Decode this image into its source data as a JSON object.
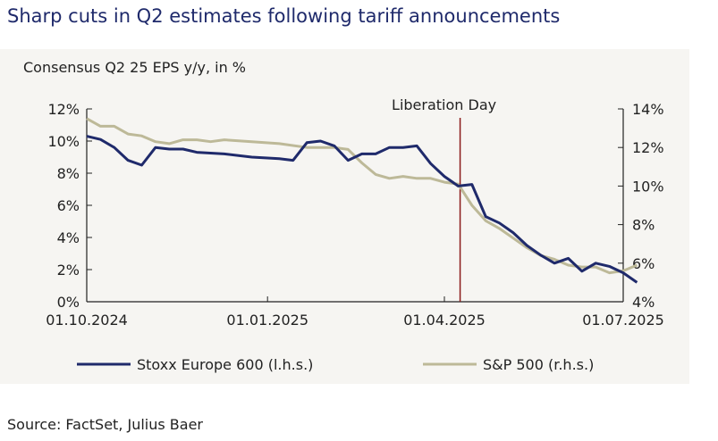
{
  "title": "Sharp cuts in Q2 estimates following tariff announcements",
  "source": "Source: FactSet, Julius Baer",
  "colors": {
    "stoxx": "#1f2a6b",
    "sp500": "#bdb998",
    "event": "#8b1a1a",
    "title": "#1f2a6b"
  },
  "chart_data": {
    "type": "line",
    "subtitle": "Consensus Q2 25 EPS y/y, in %",
    "x_ticks": [
      "01.10.2024",
      "01.01.2025",
      "01.04.2025",
      "01.07.2025"
    ],
    "xlim": [
      "2024-10-01",
      "2025-07-01"
    ],
    "ylim_left": [
      0,
      12
    ],
    "yticks_left": [
      "0%",
      "2%",
      "4%",
      "6%",
      "8%",
      "10%",
      "12%"
    ],
    "ylim_right": [
      4,
      14
    ],
    "yticks_right": [
      "4%",
      "6%",
      "8%",
      "10%",
      "12%",
      "14%"
    ],
    "annotation": {
      "label": "Liberation Day",
      "date": "2025-04-09"
    },
    "legend": {
      "placement": "bottom"
    },
    "series": [
      {
        "name": "Stoxx Europe 600 (l.h.s.)",
        "axis": "left",
        "color": "#1f2a6b",
        "points": [
          [
            "2024-10-01",
            10.3
          ],
          [
            "2024-10-08",
            10.1
          ],
          [
            "2024-10-15",
            9.6
          ],
          [
            "2024-10-22",
            8.8
          ],
          [
            "2024-10-29",
            8.5
          ],
          [
            "2024-11-05",
            9.6
          ],
          [
            "2024-11-12",
            9.5
          ],
          [
            "2024-11-19",
            9.5
          ],
          [
            "2024-11-26",
            9.3
          ],
          [
            "2024-12-10",
            9.2
          ],
          [
            "2024-12-24",
            9.0
          ],
          [
            "2025-01-07",
            8.9
          ],
          [
            "2025-01-14",
            8.8
          ],
          [
            "2025-01-21",
            9.9
          ],
          [
            "2025-01-28",
            10.0
          ],
          [
            "2025-02-04",
            9.7
          ],
          [
            "2025-02-11",
            8.8
          ],
          [
            "2025-02-18",
            9.2
          ],
          [
            "2025-02-25",
            9.2
          ],
          [
            "2025-03-04",
            9.6
          ],
          [
            "2025-03-11",
            9.6
          ],
          [
            "2025-03-18",
            9.7
          ],
          [
            "2025-03-25",
            8.6
          ],
          [
            "2025-04-01",
            7.8
          ],
          [
            "2025-04-08",
            7.2
          ],
          [
            "2025-04-15",
            7.3
          ],
          [
            "2025-04-22",
            5.3
          ],
          [
            "2025-04-29",
            4.9
          ],
          [
            "2025-05-06",
            4.3
          ],
          [
            "2025-05-13",
            3.5
          ],
          [
            "2025-05-20",
            2.9
          ],
          [
            "2025-05-27",
            2.4
          ],
          [
            "2025-06-03",
            2.7
          ],
          [
            "2025-06-10",
            1.9
          ],
          [
            "2025-06-17",
            2.4
          ],
          [
            "2025-06-24",
            2.2
          ],
          [
            "2025-07-01",
            1.8
          ],
          [
            "2025-07-08",
            1.2
          ]
        ]
      },
      {
        "name": "S&P 500 (r.h.s.)",
        "axis": "right",
        "color": "#bdb998",
        "points": [
          [
            "2024-10-01",
            13.5
          ],
          [
            "2024-10-08",
            13.1
          ],
          [
            "2024-10-15",
            13.1
          ],
          [
            "2024-10-22",
            12.7
          ],
          [
            "2024-10-29",
            12.6
          ],
          [
            "2024-11-05",
            12.3
          ],
          [
            "2024-11-12",
            12.2
          ],
          [
            "2024-11-19",
            12.4
          ],
          [
            "2024-11-26",
            12.4
          ],
          [
            "2024-12-03",
            12.3
          ],
          [
            "2024-12-10",
            12.4
          ],
          [
            "2024-12-24",
            12.3
          ],
          [
            "2025-01-07",
            12.2
          ],
          [
            "2025-01-21",
            12.0
          ],
          [
            "2025-02-04",
            12.0
          ],
          [
            "2025-02-11",
            11.9
          ],
          [
            "2025-02-18",
            11.2
          ],
          [
            "2025-02-25",
            10.6
          ],
          [
            "2025-03-04",
            10.4
          ],
          [
            "2025-03-11",
            10.5
          ],
          [
            "2025-03-18",
            10.4
          ],
          [
            "2025-03-25",
            10.4
          ],
          [
            "2025-04-01",
            10.2
          ],
          [
            "2025-04-08",
            10.1
          ],
          [
            "2025-04-15",
            9.0
          ],
          [
            "2025-04-22",
            8.2
          ],
          [
            "2025-04-29",
            7.8
          ],
          [
            "2025-05-06",
            7.3
          ],
          [
            "2025-05-13",
            6.8
          ],
          [
            "2025-05-20",
            6.4
          ],
          [
            "2025-05-27",
            6.2
          ],
          [
            "2025-06-03",
            5.9
          ],
          [
            "2025-06-10",
            5.8
          ],
          [
            "2025-06-17",
            5.8
          ],
          [
            "2025-06-24",
            5.5
          ],
          [
            "2025-07-01",
            5.6
          ],
          [
            "2025-07-08",
            5.9
          ]
        ]
      }
    ]
  }
}
